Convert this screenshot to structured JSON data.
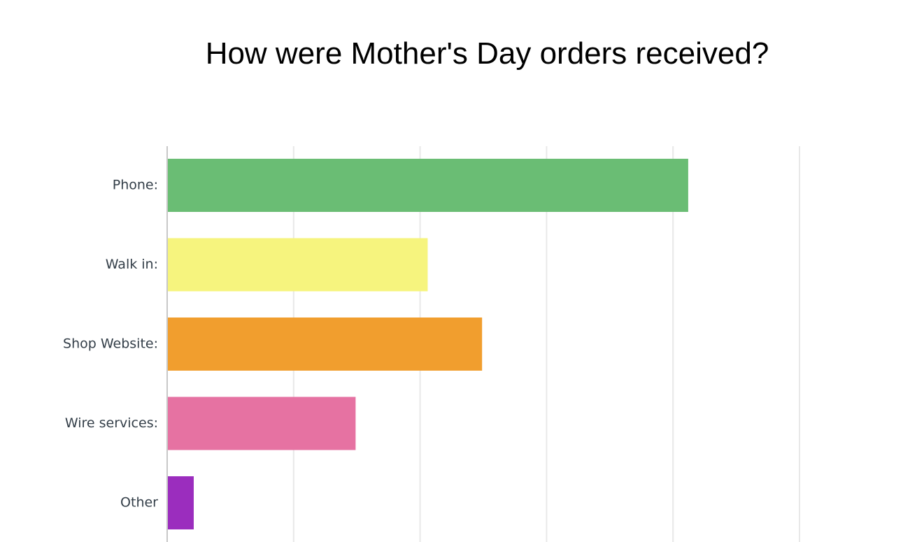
{
  "chart_data": {
    "type": "bar",
    "orientation": "horizontal",
    "title": "How were Mother's Day orders received?",
    "xlabel": "",
    "ylabel": "",
    "categories": [
      "Phone:",
      "Walk in:",
      "Shop Website:",
      "Wire services:",
      "Other"
    ],
    "values": [
      41.2,
      20.6,
      24.9,
      14.9,
      2.1
    ],
    "xlim": [
      0,
      50
    ],
    "grid": true,
    "legend": "none",
    "colors": [
      "#6abd74",
      "#f6f47e",
      "#f19e2e",
      "#e672a2",
      "#9b2dbe"
    ]
  }
}
